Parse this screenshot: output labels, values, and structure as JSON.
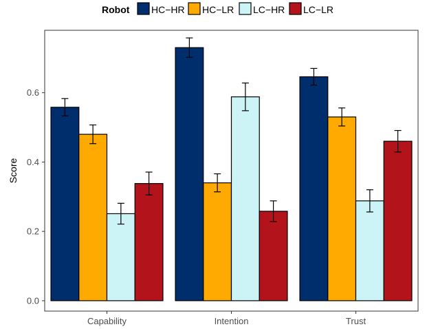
{
  "chart_data": {
    "type": "bar",
    "categories": [
      "Capability",
      "Intention",
      "Trust"
    ],
    "series": [
      {
        "name": "HC−HR",
        "color": "#002d6b",
        "values": [
          0.558,
          0.73,
          0.646
        ],
        "errors": [
          0.025,
          0.028,
          0.024
        ]
      },
      {
        "name": "HC−LR",
        "color": "#ffaa00",
        "values": [
          0.48,
          0.34,
          0.53
        ],
        "errors": [
          0.027,
          0.026,
          0.026
        ]
      },
      {
        "name": "LC−HR",
        "color": "#ccf4f6",
        "values": [
          0.251,
          0.588,
          0.288
        ],
        "errors": [
          0.03,
          0.04,
          0.032
        ]
      },
      {
        "name": "LC−LR",
        "color": "#b3141b",
        "values": [
          0.338,
          0.258,
          0.46
        ],
        "errors": [
          0.033,
          0.03,
          0.031
        ]
      }
    ],
    "title": "",
    "xlabel": "",
    "ylabel": "Score",
    "ylim": [
      -0.03,
      0.78
    ],
    "yticks": [
      0.0,
      0.2,
      0.4,
      0.6
    ],
    "ytick_labels": [
      "0.0",
      "0.2",
      "0.4",
      "0.6"
    ],
    "legend_title": "Robot",
    "legend_position": "top",
    "grid": false
  }
}
